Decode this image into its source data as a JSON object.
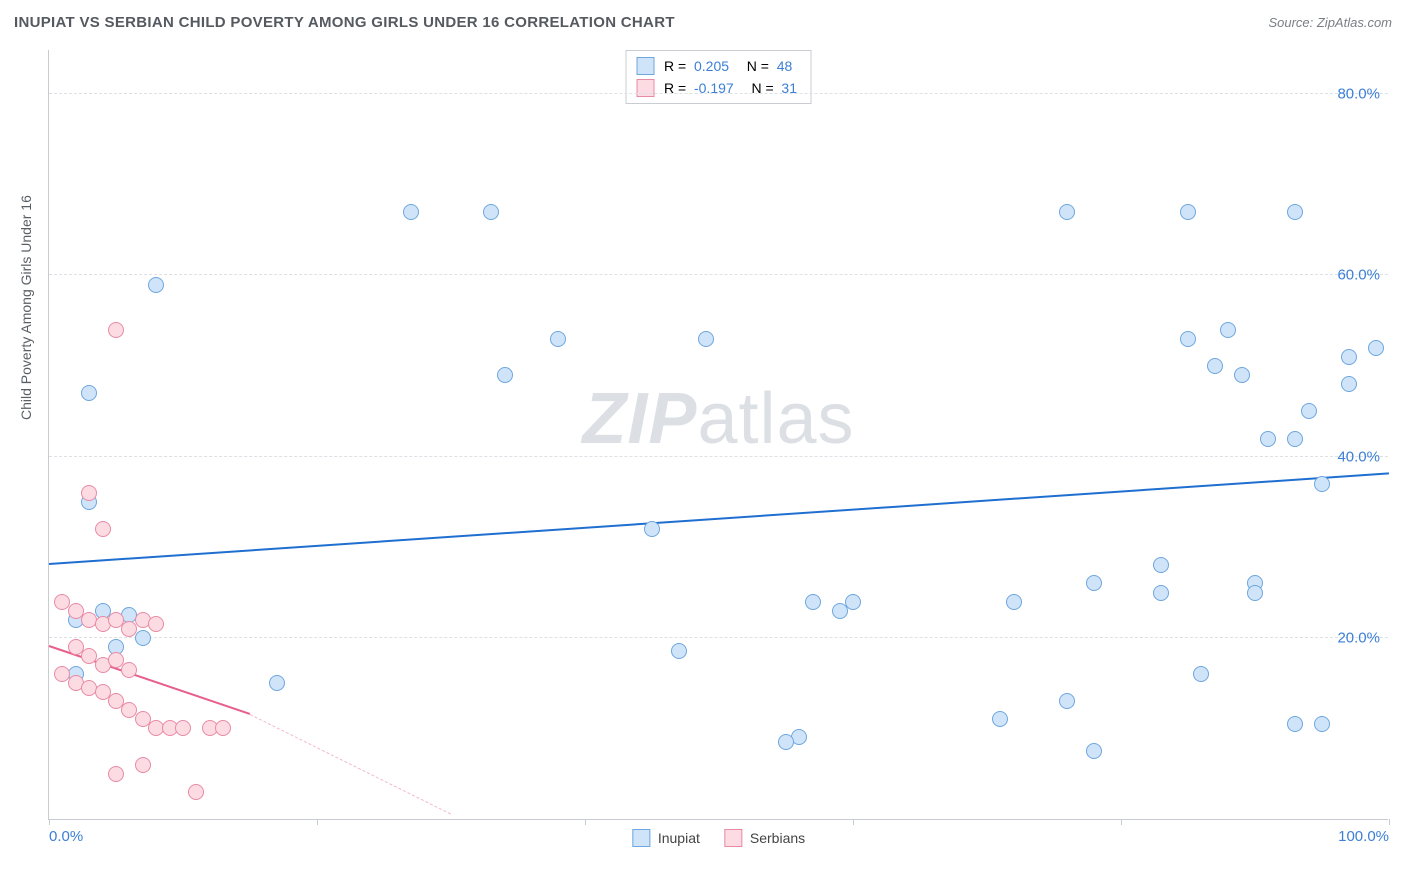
{
  "header": {
    "title": "INUPIAT VS SERBIAN CHILD POVERTY AMONG GIRLS UNDER 16 CORRELATION CHART",
    "source": "Source: ZipAtlas.com"
  },
  "watermark": {
    "left": "ZIP",
    "right": "atlas"
  },
  "chart": {
    "type": "scatter",
    "y_axis_label": "Child Poverty Among Girls Under 16",
    "plot_background": "#ffffff",
    "grid_color": "#dde0e4",
    "axis_color": "#c8cbd0",
    "tick_label_color": "#3b7fd6",
    "axis_label_color": "#5a5f66",
    "xlim": [
      0,
      100
    ],
    "ylim": [
      0,
      85
    ],
    "x_ticks": [
      0,
      20,
      40,
      60,
      80,
      100
    ],
    "x_tick_labels": [
      "0.0%",
      "",
      "",
      "",
      "",
      "100.0%"
    ],
    "y_ticks": [
      20,
      40,
      60,
      80
    ],
    "y_tick_labels": [
      "20.0%",
      "40.0%",
      "60.0%",
      "80.0%"
    ],
    "marker_radius": 8,
    "marker_border_width": 1.2,
    "series": [
      {
        "name": "Inupiat",
        "fill": "#cfe4f8",
        "stroke": "#6ea6de",
        "R": "0.205",
        "N": "48",
        "trend": {
          "x1": 0,
          "y1": 28,
          "x2": 100,
          "y2": 38,
          "color": "#1f6fd0",
          "width": 2.4,
          "dash": "solid"
        },
        "points": [
          [
            3,
            47
          ],
          [
            3,
            35
          ],
          [
            8,
            59
          ],
          [
            27,
            67
          ],
          [
            33,
            67
          ],
          [
            34,
            49
          ],
          [
            38,
            53
          ],
          [
            49,
            53
          ],
          [
            76,
            67
          ],
          [
            85,
            67
          ],
          [
            93,
            67
          ],
          [
            94,
            45
          ],
          [
            87,
            50
          ],
          [
            89,
            49
          ],
          [
            88,
            54
          ],
          [
            85,
            53
          ],
          [
            97,
            51
          ],
          [
            97,
            48
          ],
          [
            99,
            52
          ],
          [
            93,
            42
          ],
          [
            91,
            42
          ],
          [
            95,
            37
          ],
          [
            57,
            24
          ],
          [
            60,
            24
          ],
          [
            72,
            24
          ],
          [
            78,
            26
          ],
          [
            83,
            28
          ],
          [
            83,
            25
          ],
          [
            90,
            26
          ],
          [
            90,
            25
          ],
          [
            71,
            11
          ],
          [
            76,
            13
          ],
          [
            78,
            7.5
          ],
          [
            56,
            9
          ],
          [
            55,
            8.5
          ],
          [
            17,
            15
          ],
          [
            47,
            18.5
          ],
          [
            45,
            32
          ],
          [
            86,
            16
          ],
          [
            93,
            10.5
          ],
          [
            95,
            10.5
          ],
          [
            59,
            23
          ],
          [
            4,
            23
          ],
          [
            2,
            22
          ],
          [
            6,
            22.5
          ],
          [
            5,
            19
          ],
          [
            7,
            20
          ],
          [
            2,
            16
          ]
        ]
      },
      {
        "name": "Serbians",
        "fill": "#fcdbe3",
        "stroke": "#e98aa5",
        "R": "-0.197",
        "N": "31",
        "trend_solid": {
          "x1": 0,
          "y1": 19,
          "x2": 15,
          "y2": 11.5,
          "color": "#e75f8a",
          "width": 2.4
        },
        "trend_dash": {
          "x1": 15,
          "y1": 11.5,
          "x2": 30,
          "y2": 0.5,
          "color": "#f4b8c9",
          "width": 1.4
        },
        "points": [
          [
            5,
            54
          ],
          [
            3,
            36
          ],
          [
            4,
            32
          ],
          [
            1,
            24
          ],
          [
            2,
            23
          ],
          [
            3,
            22
          ],
          [
            4,
            21.5
          ],
          [
            5,
            22
          ],
          [
            6,
            21
          ],
          [
            7,
            22
          ],
          [
            8,
            21.5
          ],
          [
            2,
            19
          ],
          [
            3,
            18
          ],
          [
            4,
            17
          ],
          [
            5,
            17.5
          ],
          [
            6,
            16.5
          ],
          [
            1,
            16
          ],
          [
            2,
            15
          ],
          [
            3,
            14.5
          ],
          [
            4,
            14
          ],
          [
            5,
            13
          ],
          [
            6,
            12
          ],
          [
            7,
            11
          ],
          [
            8,
            10
          ],
          [
            9,
            10
          ],
          [
            10,
            10
          ],
          [
            12,
            10
          ],
          [
            13,
            10
          ],
          [
            7,
            6
          ],
          [
            5,
            5
          ],
          [
            11,
            3
          ]
        ]
      }
    ],
    "legend_bottom": [
      {
        "label": "Inupiat",
        "fill": "#cfe4f8",
        "stroke": "#6ea6de"
      },
      {
        "label": "Serbians",
        "fill": "#fcdbe3",
        "stroke": "#e98aa5"
      }
    ]
  }
}
